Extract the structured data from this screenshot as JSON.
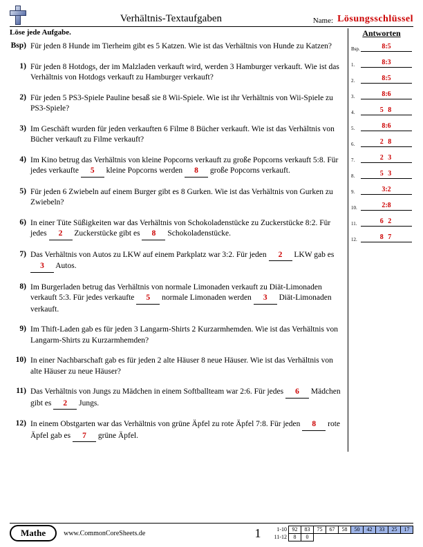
{
  "header": {
    "title": "Verhältnis-Textaufgaben",
    "name_label": "Name:",
    "key_label": "Lösungsschlüssel"
  },
  "instruction": "Löse jede Aufgabe.",
  "answers_heading": "Antworten",
  "problems": [
    {
      "num": "Bsp)",
      "text_parts": [
        "Für jeden 8 Hunde im Tierheim gibt es 5 Katzen. Wie ist das Verhältnis von Hunde zu Katzen?"
      ],
      "blanks": []
    },
    {
      "num": "1)",
      "text_parts": [
        "Für jeden 8 Hotdogs, der im Malzladen verkauft wird, werden 3 Hamburger verkauft. Wie ist das Verhältnis von Hotdogs verkauft zu Hamburger verkauft?"
      ],
      "blanks": []
    },
    {
      "num": "2)",
      "text_parts": [
        "Für jeden 5 PS3-Spiele Pauline besaß sie 8 Wii-Spiele. Wie ist ihr Verhältnis von Wii-Spiele zu PS3-Spiele?"
      ],
      "blanks": []
    },
    {
      "num": "3)",
      "text_parts": [
        "Im Geschäft wurden für jeden verkauften 6 Filme 8 Bücher verkauft. Wie ist das Verhältnis von Bücher verkauft zu Filme verkauft?"
      ],
      "blanks": []
    },
    {
      "num": "4)",
      "text_parts": [
        "Im Kino betrug das Verhältnis von kleine Popcorns verkauft zu große Popcorns verkauft 5:8. Für jedes verkaufte ",
        " kleine Popcorns werden ",
        " große Popcorns verkauft."
      ],
      "blanks": [
        "5",
        "8"
      ]
    },
    {
      "num": "5)",
      "text_parts": [
        "Für jeden 6 Zwiebeln auf einem Burger gibt es 8 Gurken. Wie ist das Verhältnis von Gurken zu Zwiebeln?"
      ],
      "blanks": []
    },
    {
      "num": "6)",
      "text_parts": [
        "In einer Tüte Süßigkeiten war das Verhältnis von Schokoladenstücke zu Zuckerstücke 8:2. Für jedes ",
        " Zuckerstücke gibt es ",
        " Schokoladenstücke."
      ],
      "blanks": [
        "2",
        "8"
      ]
    },
    {
      "num": "7)",
      "text_parts": [
        "Das Verhältnis von Autos zu LKW auf einem Parkplatz war 3:2. Für jeden ",
        " LKW gab es ",
        " Autos."
      ],
      "blanks": [
        "2",
        "3"
      ]
    },
    {
      "num": "8)",
      "text_parts": [
        "Im Burgerladen betrug das Verhältnis von normale Limonaden verkauft zu Diät-Limonaden verkauft 5:3. Für jedes verkaufte ",
        " normale Limonaden werden ",
        " Diät-Limonaden verkauft."
      ],
      "blanks": [
        "5",
        "3"
      ]
    },
    {
      "num": "9)",
      "text_parts": [
        "Im Thift-Laden gab es für jeden 3 Langarm-Shirts 2 Kurzarmhemden. Wie ist das Verhältnis von Langarm-Shirts zu Kurzarmhemden?"
      ],
      "blanks": []
    },
    {
      "num": "10)",
      "text_parts": [
        "In einer Nachbarschaft gab es für jeden 2 alte Häuser 8 neue Häuser. Wie ist das Verhältnis von alte Häuser zu neue Häuser?"
      ],
      "blanks": []
    },
    {
      "num": "11)",
      "text_parts": [
        "Das Verhältnis von Jungs zu Mädchen in einem Softballteam war 2:6. Für jedes ",
        " Mädchen gibt es ",
        " Jungs."
      ],
      "blanks": [
        "6",
        "2"
      ]
    },
    {
      "num": "12)",
      "text_parts": [
        "In einem Obstgarten war das Verhältnis von grüne Äpfel zu rote Äpfel 7:8. Für jeden ",
        " rote Äpfel gab es ",
        " grüne Äpfel."
      ],
      "blanks": [
        "8",
        "7"
      ]
    }
  ],
  "answers": [
    {
      "idx": "Bsp.",
      "val": "8:5",
      "ratio": true
    },
    {
      "idx": "1.",
      "val": "8:3",
      "ratio": true
    },
    {
      "idx": "2.",
      "val": "8:5",
      "ratio": true
    },
    {
      "idx": "3.",
      "val": "8:6",
      "ratio": true
    },
    {
      "idx": "4.",
      "val": "5    8",
      "ratio": false
    },
    {
      "idx": "5.",
      "val": "8:6",
      "ratio": true
    },
    {
      "idx": "6.",
      "val": "2    8",
      "ratio": false
    },
    {
      "idx": "7.",
      "val": "2    3",
      "ratio": false
    },
    {
      "idx": "8.",
      "val": "5    3",
      "ratio": false
    },
    {
      "idx": "9.",
      "val": "3:2",
      "ratio": true
    },
    {
      "idx": "10.",
      "val": "2:8",
      "ratio": true
    },
    {
      "idx": "11.",
      "val": "6    2",
      "ratio": false
    },
    {
      "idx": "12.",
      "val": "8    7",
      "ratio": false
    }
  ],
  "footer": {
    "subject": "Mathe",
    "url": "www.CommonCoreSheets.de",
    "page": "1",
    "score_rows": [
      {
        "label": "1-10",
        "cells": [
          "92",
          "83",
          "75",
          "67",
          "58",
          "50",
          "42",
          "33",
          "25",
          "17"
        ],
        "hl_from": 5
      },
      {
        "label": "11-12",
        "cells": [
          "8",
          "0"
        ],
        "hl_from": 999
      }
    ]
  },
  "colors": {
    "answer_red": "#c00",
    "grid_highlight": "#9db4e8"
  }
}
